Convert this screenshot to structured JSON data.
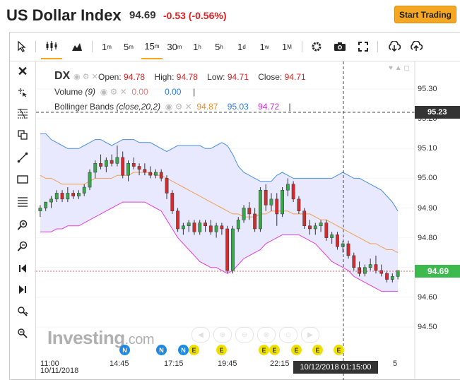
{
  "header": {
    "title": "US Dollar Index",
    "price": "94.69",
    "change": "-0.53 (-0.56%)",
    "start_trading": "Start Trading"
  },
  "toolbar": {
    "intervals": [
      {
        "main": "1",
        "sup": "m"
      },
      {
        "main": "5",
        "sup": "m"
      },
      {
        "main": "15",
        "sup": "m"
      },
      {
        "main": "30",
        "sup": "m"
      },
      {
        "main": "1",
        "sup": "h"
      },
      {
        "main": "5",
        "sup": "h"
      },
      {
        "main": "1",
        "sup": "d"
      },
      {
        "main": "1",
        "sup": "w"
      },
      {
        "main": "1",
        "sup": "M"
      }
    ],
    "active_interval": "15m"
  },
  "legend": {
    "symbol": "DX",
    "open_label": "Open:",
    "open": "94.78",
    "high_label": "High:",
    "high": "94.78",
    "low_label": "Low:",
    "low": "94.71",
    "close_label": "Close:",
    "close": "94.71",
    "volume_label": "Volume",
    "volume_param": "(9)",
    "volume_val1": "0.00",
    "volume_val2": "0.00",
    "bb_label": "Bollinger Bands",
    "bb_param": "(close,20,2)",
    "bb_mid": "94.87",
    "bb_upper": "95.03",
    "bb_lower": "94.72"
  },
  "y_axis": {
    "ticks": [
      "95.30",
      "95.20",
      "95.10",
      "95.00",
      "94.90",
      "94.80",
      "94.70",
      "94.60",
      "94.50"
    ],
    "crosshair_label": "95.23",
    "current_label": "94.69"
  },
  "x_axis": {
    "ticks": [
      "11:00",
      "14:45",
      "17:15",
      "19:45",
      "22:15",
      "5"
    ],
    "date_label": "10/11/2018",
    "crosshair_label": "10/12/2018 01:15:00"
  },
  "branding": {
    "logo_main": "Investing",
    "logo_suffix": ".com"
  },
  "events": [
    "N",
    "N",
    "N",
    "E",
    "E",
    "E",
    "E",
    "E",
    "E",
    "E"
  ],
  "colors": {
    "accent": "#f5a623",
    "up": "#3aa84a",
    "down": "#d22c2c",
    "bb_upper": "#4a90e2",
    "bb_mid": "#f0a050",
    "bb_lower": "#e040e0",
    "bb_fill": "#e8e8ff",
    "current_price_bg": "#3dba4e"
  },
  "chart_data": {
    "type": "candlestick",
    "interval": "15m",
    "ylim": [
      94.45,
      95.35
    ],
    "candles": [
      [
        94.89,
        94.91,
        94.87,
        94.9
      ],
      [
        94.9,
        94.92,
        94.89,
        94.92
      ],
      [
        94.92,
        94.94,
        94.9,
        94.93
      ],
      [
        94.93,
        94.96,
        94.92,
        94.95
      ],
      [
        94.95,
        94.96,
        94.92,
        94.93
      ],
      [
        94.93,
        94.97,
        94.92,
        94.95
      ],
      [
        94.95,
        94.96,
        94.93,
        94.94
      ],
      [
        94.94,
        94.96,
        94.93,
        94.95
      ],
      [
        94.95,
        94.98,
        94.94,
        94.97
      ],
      [
        94.97,
        95.03,
        94.96,
        95.02
      ],
      [
        95.02,
        95.06,
        95.0,
        95.05
      ],
      [
        95.05,
        95.08,
        95.03,
        95.04
      ],
      [
        95.04,
        95.07,
        95.02,
        95.06
      ],
      [
        95.06,
        95.08,
        95.04,
        95.05
      ],
      [
        95.05,
        95.11,
        95.04,
        95.07
      ],
      [
        95.07,
        95.09,
        95.0,
        95.01
      ],
      [
        95.01,
        95.06,
        94.99,
        95.05
      ],
      [
        95.05,
        95.07,
        95.03,
        95.04
      ],
      [
        95.04,
        95.05,
        95.01,
        95.03
      ],
      [
        95.03,
        95.05,
        95.01,
        95.02
      ],
      [
        95.02,
        95.04,
        95.0,
        95.01
      ],
      [
        95.01,
        95.03,
        95.0,
        95.02
      ],
      [
        95.02,
        95.03,
        94.99,
        95.0
      ],
      [
        95.0,
        95.01,
        94.93,
        94.95
      ],
      [
        94.95,
        94.96,
        94.88,
        94.89
      ],
      [
        94.89,
        94.9,
        94.82,
        94.83
      ],
      [
        94.83,
        94.85,
        94.81,
        94.84
      ],
      [
        94.84,
        94.86,
        94.82,
        94.85
      ],
      [
        94.85,
        94.86,
        94.81,
        94.82
      ],
      [
        94.82,
        94.86,
        94.81,
        94.85
      ],
      [
        94.85,
        94.86,
        94.82,
        94.84
      ],
      [
        94.84,
        94.86,
        94.81,
        94.82
      ],
      [
        94.82,
        94.85,
        94.8,
        94.84
      ],
      [
        94.84,
        94.85,
        94.81,
        94.83
      ],
      [
        94.83,
        94.84,
        94.68,
        94.69
      ],
      [
        94.69,
        94.84,
        94.68,
        94.83
      ],
      [
        94.83,
        94.87,
        94.82,
        94.86
      ],
      [
        94.86,
        94.91,
        94.85,
        94.9
      ],
      [
        94.9,
        94.92,
        94.86,
        94.88
      ],
      [
        94.88,
        94.9,
        94.82,
        94.83
      ],
      [
        94.83,
        94.97,
        94.82,
        94.96
      ],
      [
        94.96,
        94.98,
        94.89,
        94.91
      ],
      [
        94.91,
        94.95,
        94.89,
        94.93
      ],
      [
        94.93,
        94.95,
        94.84,
        94.88
      ],
      [
        94.88,
        94.97,
        94.87,
        94.96
      ],
      [
        94.96,
        95.0,
        94.94,
        94.98
      ],
      [
        94.98,
        94.99,
        94.92,
        94.93
      ],
      [
        94.93,
        94.94,
        94.88,
        94.89
      ],
      [
        94.89,
        94.9,
        94.83,
        94.84
      ],
      [
        94.84,
        94.86,
        94.81,
        94.83
      ],
      [
        94.83,
        94.85,
        94.81,
        94.84
      ],
      [
        94.84,
        94.86,
        94.82,
        94.85
      ],
      [
        94.85,
        94.86,
        94.79,
        94.8
      ],
      [
        94.8,
        94.82,
        94.78,
        94.81
      ],
      [
        94.81,
        94.82,
        94.76,
        94.77
      ],
      [
        94.77,
        94.79,
        94.75,
        94.78
      ],
      [
        94.78,
        94.79,
        94.73,
        94.74
      ],
      [
        94.74,
        94.75,
        94.69,
        94.7
      ],
      [
        94.7,
        94.72,
        94.67,
        94.68
      ],
      [
        94.68,
        94.71,
        94.67,
        94.7
      ],
      [
        94.7,
        94.73,
        94.69,
        94.71
      ],
      [
        94.71,
        94.74,
        94.68,
        94.69
      ],
      [
        94.69,
        94.71,
        94.67,
        94.68
      ],
      [
        94.68,
        94.69,
        94.65,
        94.66
      ],
      [
        94.66,
        94.68,
        94.65,
        94.67
      ],
      [
        94.67,
        94.69,
        94.66,
        94.69
      ]
    ],
    "bb_upper": [
      95.15,
      95.15,
      95.13,
      95.12,
      95.11,
      95.1,
      95.1,
      95.1,
      95.11,
      95.12,
      95.13,
      95.13,
      95.12,
      95.11,
      95.12,
      95.13,
      95.13,
      95.13,
      95.12,
      95.12,
      95.12,
      95.11,
      95.1,
      95.09,
      95.1,
      95.11,
      95.11,
      95.11,
      95.11,
      95.11,
      95.1,
      95.1,
      95.11,
      95.12,
      95.11,
      95.08,
      95.04,
      95.02,
      95.01,
      95.0,
      94.99,
      94.99,
      94.99,
      95.01,
      95.02,
      95.01,
      95.0,
      95.0,
      95.0,
      95.0,
      95.0,
      95.0,
      95.0,
      95.0,
      95.01,
      95.02,
      95.01,
      95.0,
      95.0,
      94.99,
      94.98,
      94.97,
      94.96,
      94.94,
      94.92,
      94.89
    ],
    "bb_mid": [
      95.01,
      95.0,
      95.0,
      94.99,
      94.98,
      94.98,
      94.98,
      94.98,
      94.98,
      94.99,
      95.0,
      95.0,
      95.0,
      95.0,
      95.01,
      95.01,
      95.01,
      95.02,
      95.02,
      95.02,
      95.02,
      95.01,
      95.01,
      95.0,
      94.99,
      94.98,
      94.97,
      94.96,
      94.95,
      94.94,
      94.93,
      94.92,
      94.91,
      94.9,
      94.89,
      94.88,
      94.88,
      94.87,
      94.87,
      94.87,
      94.88,
      94.88,
      94.89,
      94.89,
      94.89,
      94.89,
      94.88,
      94.88,
      94.88,
      94.88,
      94.87,
      94.86,
      94.86,
      94.85,
      94.84,
      94.83,
      94.82,
      94.81,
      94.8,
      94.79,
      94.78,
      94.78,
      94.77,
      94.76,
      94.76,
      94.75
    ],
    "bb_lower": [
      94.82,
      94.82,
      94.82,
      94.83,
      94.83,
      94.84,
      94.84,
      94.84,
      94.85,
      94.86,
      94.87,
      94.88,
      94.89,
      94.9,
      94.91,
      94.92,
      94.92,
      94.92,
      94.92,
      94.92,
      94.91,
      94.9,
      94.89,
      94.86,
      94.83,
      94.8,
      94.78,
      94.76,
      94.74,
      94.72,
      94.71,
      94.7,
      94.7,
      94.69,
      94.68,
      94.69,
      94.71,
      94.73,
      94.74,
      94.75,
      94.76,
      94.78,
      94.79,
      94.8,
      94.81,
      94.81,
      94.81,
      94.81,
      94.8,
      94.79,
      94.78,
      94.76,
      94.74,
      94.72,
      94.71,
      94.7,
      94.69,
      94.67,
      94.66,
      94.65,
      94.64,
      94.63,
      94.62,
      94.62,
      94.62,
      94.62
    ]
  }
}
